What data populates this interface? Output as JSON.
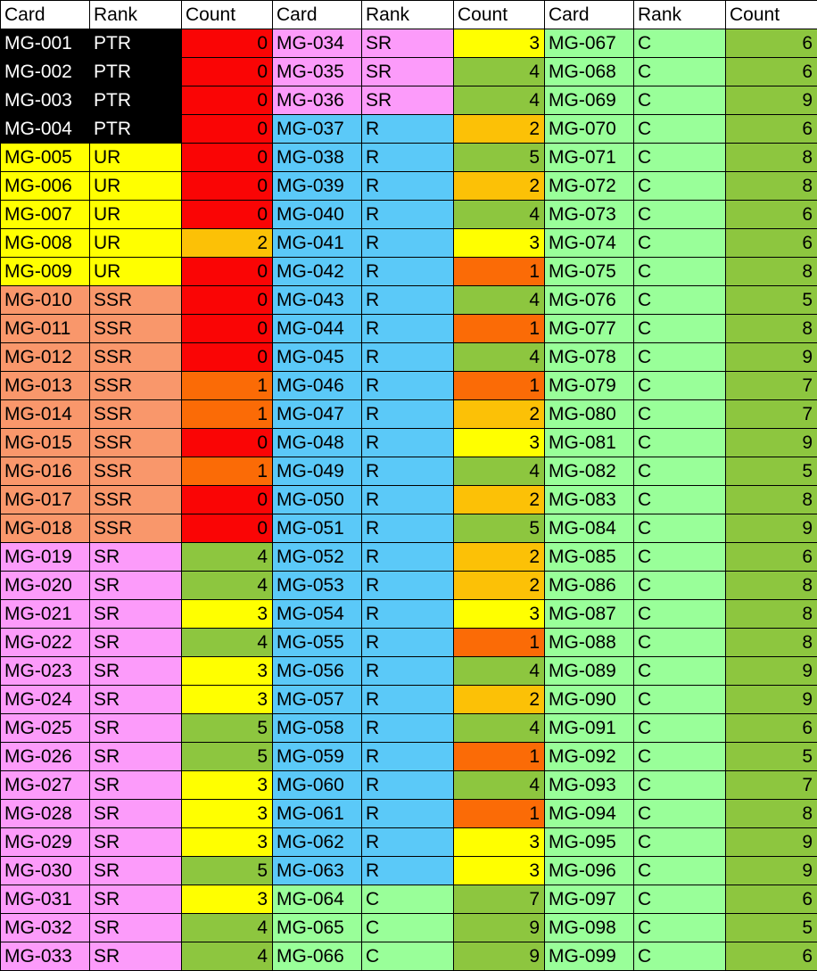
{
  "palette": {
    "grid": "#000000",
    "header_bg": "#FFFFFF",
    "header_fg": "#000000",
    "ranks": {
      "PTR": {
        "bg": "#000000",
        "fg": "#FFFFFF"
      },
      "UR": {
        "bg": "#FFFF00",
        "fg": "#000000"
      },
      "SSR": {
        "bg": "#F9976B",
        "fg": "#000000"
      },
      "SR": {
        "bg": "#FC9BFA",
        "fg": "#000000"
      },
      "R": {
        "bg": "#5BC9F8",
        "fg": "#000000"
      },
      "C": {
        "bg": "#99FF99",
        "fg": "#000000"
      }
    },
    "counts": {
      "0": "#FA0505",
      "1": "#FB6B06",
      "2": "#FCC106",
      "3": "#FFFF00",
      "4": "#8DC63F",
      "5": "#8DC63F",
      "6": "#8DC63F",
      "7": "#8DC63F",
      "8": "#8DC63F",
      "9": "#8DC63F"
    },
    "count_fg": "#000000"
  },
  "table": {
    "headers": [
      "Card",
      "Rank",
      "Count"
    ],
    "groups": [
      {
        "rows": [
          {
            "card": "MG-001",
            "rank": "PTR",
            "count": "0"
          },
          {
            "card": "MG-002",
            "rank": "PTR",
            "count": "0"
          },
          {
            "card": "MG-003",
            "rank": "PTR",
            "count": "0"
          },
          {
            "card": "MG-004",
            "rank": "PTR",
            "count": "0"
          },
          {
            "card": "MG-005",
            "rank": "UR",
            "count": "0"
          },
          {
            "card": "MG-006",
            "rank": "UR",
            "count": "0"
          },
          {
            "card": "MG-007",
            "rank": "UR",
            "count": "0"
          },
          {
            "card": "MG-008",
            "rank": "UR",
            "count": "2"
          },
          {
            "card": "MG-009",
            "rank": "UR",
            "count": "0"
          },
          {
            "card": "MG-010",
            "rank": "SSR",
            "count": "0"
          },
          {
            "card": "MG-011",
            "rank": "SSR",
            "count": "0"
          },
          {
            "card": "MG-012",
            "rank": "SSR",
            "count": "0"
          },
          {
            "card": "MG-013",
            "rank": "SSR",
            "count": "1"
          },
          {
            "card": "MG-014",
            "rank": "SSR",
            "count": "1"
          },
          {
            "card": "MG-015",
            "rank": "SSR",
            "count": "0"
          },
          {
            "card": "MG-016",
            "rank": "SSR",
            "count": "1"
          },
          {
            "card": "MG-017",
            "rank": "SSR",
            "count": "0"
          },
          {
            "card": "MG-018",
            "rank": "SSR",
            "count": "0"
          },
          {
            "card": "MG-019",
            "rank": "SR",
            "count": "4"
          },
          {
            "card": "MG-020",
            "rank": "SR",
            "count": "4"
          },
          {
            "card": "MG-021",
            "rank": "SR",
            "count": "3"
          },
          {
            "card": "MG-022",
            "rank": "SR",
            "count": "4"
          },
          {
            "card": "MG-023",
            "rank": "SR",
            "count": "3"
          },
          {
            "card": "MG-024",
            "rank": "SR",
            "count": "3"
          },
          {
            "card": "MG-025",
            "rank": "SR",
            "count": "5"
          },
          {
            "card": "MG-026",
            "rank": "SR",
            "count": "5"
          },
          {
            "card": "MG-027",
            "rank": "SR",
            "count": "3"
          },
          {
            "card": "MG-028",
            "rank": "SR",
            "count": "3"
          },
          {
            "card": "MG-029",
            "rank": "SR",
            "count": "3"
          },
          {
            "card": "MG-030",
            "rank": "SR",
            "count": "5"
          },
          {
            "card": "MG-031",
            "rank": "SR",
            "count": "3"
          },
          {
            "card": "MG-032",
            "rank": "SR",
            "count": "4"
          },
          {
            "card": "MG-033",
            "rank": "SR",
            "count": "4"
          }
        ]
      },
      {
        "rows": [
          {
            "card": "MG-034",
            "rank": "SR",
            "count": "3"
          },
          {
            "card": "MG-035",
            "rank": "SR",
            "count": "4"
          },
          {
            "card": "MG-036",
            "rank": "SR",
            "count": "4"
          },
          {
            "card": "MG-037",
            "rank": "R",
            "count": "2"
          },
          {
            "card": "MG-038",
            "rank": "R",
            "count": "5"
          },
          {
            "card": "MG-039",
            "rank": "R",
            "count": "2"
          },
          {
            "card": "MG-040",
            "rank": "R",
            "count": "4"
          },
          {
            "card": "MG-041",
            "rank": "R",
            "count": "3"
          },
          {
            "card": "MG-042",
            "rank": "R",
            "count": "1"
          },
          {
            "card": "MG-043",
            "rank": "R",
            "count": "4"
          },
          {
            "card": "MG-044",
            "rank": "R",
            "count": "1"
          },
          {
            "card": "MG-045",
            "rank": "R",
            "count": "4"
          },
          {
            "card": "MG-046",
            "rank": "R",
            "count": "1"
          },
          {
            "card": "MG-047",
            "rank": "R",
            "count": "2"
          },
          {
            "card": "MG-048",
            "rank": "R",
            "count": "3"
          },
          {
            "card": "MG-049",
            "rank": "R",
            "count": "4"
          },
          {
            "card": "MG-050",
            "rank": "R",
            "count": "2"
          },
          {
            "card": "MG-051",
            "rank": "R",
            "count": "5"
          },
          {
            "card": "MG-052",
            "rank": "R",
            "count": "2"
          },
          {
            "card": "MG-053",
            "rank": "R",
            "count": "2"
          },
          {
            "card": "MG-054",
            "rank": "R",
            "count": "3"
          },
          {
            "card": "MG-055",
            "rank": "R",
            "count": "1"
          },
          {
            "card": "MG-056",
            "rank": "R",
            "count": "4"
          },
          {
            "card": "MG-057",
            "rank": "R",
            "count": "2"
          },
          {
            "card": "MG-058",
            "rank": "R",
            "count": "4"
          },
          {
            "card": "MG-059",
            "rank": "R",
            "count": "1"
          },
          {
            "card": "MG-060",
            "rank": "R",
            "count": "4"
          },
          {
            "card": "MG-061",
            "rank": "R",
            "count": "1"
          },
          {
            "card": "MG-062",
            "rank": "R",
            "count": "3"
          },
          {
            "card": "MG-063",
            "rank": "R",
            "count": "3"
          },
          {
            "card": "MG-064",
            "rank": "C",
            "count": "7"
          },
          {
            "card": "MG-065",
            "rank": "C",
            "count": "9"
          },
          {
            "card": "MG-066",
            "rank": "C",
            "count": "9"
          }
        ]
      },
      {
        "rows": [
          {
            "card": "MG-067",
            "rank": "C",
            "count": "6"
          },
          {
            "card": "MG-068",
            "rank": "C",
            "count": "6"
          },
          {
            "card": "MG-069",
            "rank": "C",
            "count": "9"
          },
          {
            "card": "MG-070",
            "rank": "C",
            "count": "6"
          },
          {
            "card": "MG-071",
            "rank": "C",
            "count": "8"
          },
          {
            "card": "MG-072",
            "rank": "C",
            "count": "8"
          },
          {
            "card": "MG-073",
            "rank": "C",
            "count": "6"
          },
          {
            "card": "MG-074",
            "rank": "C",
            "count": "6"
          },
          {
            "card": "MG-075",
            "rank": "C",
            "count": "8"
          },
          {
            "card": "MG-076",
            "rank": "C",
            "count": "5"
          },
          {
            "card": "MG-077",
            "rank": "C",
            "count": "8"
          },
          {
            "card": "MG-078",
            "rank": "C",
            "count": "9"
          },
          {
            "card": "MG-079",
            "rank": "C",
            "count": "7"
          },
          {
            "card": "MG-080",
            "rank": "C",
            "count": "7"
          },
          {
            "card": "MG-081",
            "rank": "C",
            "count": "9"
          },
          {
            "card": "MG-082",
            "rank": "C",
            "count": "5"
          },
          {
            "card": "MG-083",
            "rank": "C",
            "count": "8"
          },
          {
            "card": "MG-084",
            "rank": "C",
            "count": "9"
          },
          {
            "card": "MG-085",
            "rank": "C",
            "count": "6"
          },
          {
            "card": "MG-086",
            "rank": "C",
            "count": "8"
          },
          {
            "card": "MG-087",
            "rank": "C",
            "count": "8"
          },
          {
            "card": "MG-088",
            "rank": "C",
            "count": "8"
          },
          {
            "card": "MG-089",
            "rank": "C",
            "count": "9"
          },
          {
            "card": "MG-090",
            "rank": "C",
            "count": "9"
          },
          {
            "card": "MG-091",
            "rank": "C",
            "count": "6"
          },
          {
            "card": "MG-092",
            "rank": "C",
            "count": "5"
          },
          {
            "card": "MG-093",
            "rank": "C",
            "count": "7"
          },
          {
            "card": "MG-094",
            "rank": "C",
            "count": "8"
          },
          {
            "card": "MG-095",
            "rank": "C",
            "count": "9"
          },
          {
            "card": "MG-096",
            "rank": "C",
            "count": "9"
          },
          {
            "card": "MG-097",
            "rank": "C",
            "count": "6"
          },
          {
            "card": "MG-098",
            "rank": "C",
            "count": "5"
          },
          {
            "card": "MG-099",
            "rank": "C",
            "count": "6"
          }
        ]
      }
    ]
  }
}
